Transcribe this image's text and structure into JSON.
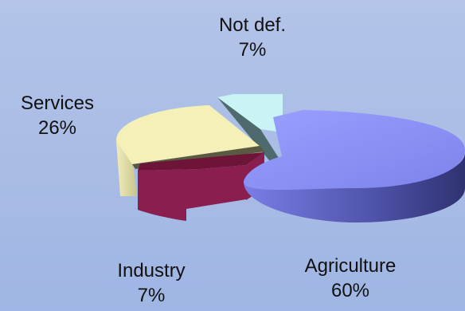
{
  "chart_data": {
    "type": "pie",
    "title": "",
    "categories": [
      "Agriculture",
      "Industry",
      "Services",
      "Not def."
    ],
    "values": [
      60,
      7,
      26,
      7
    ],
    "labels": [
      {
        "name": "Agriculture",
        "pct": "60%"
      },
      {
        "name": "Industry",
        "pct": "7%"
      },
      {
        "name": "Services",
        "pct": "26%"
      },
      {
        "name": "Not def.",
        "pct": "7%"
      }
    ],
    "colors": [
      "#8a8ff2",
      "#8a1f4f",
      "#f4f0b8",
      "#c9f3f4"
    ],
    "style": "3d-exploded",
    "legend": "none"
  }
}
